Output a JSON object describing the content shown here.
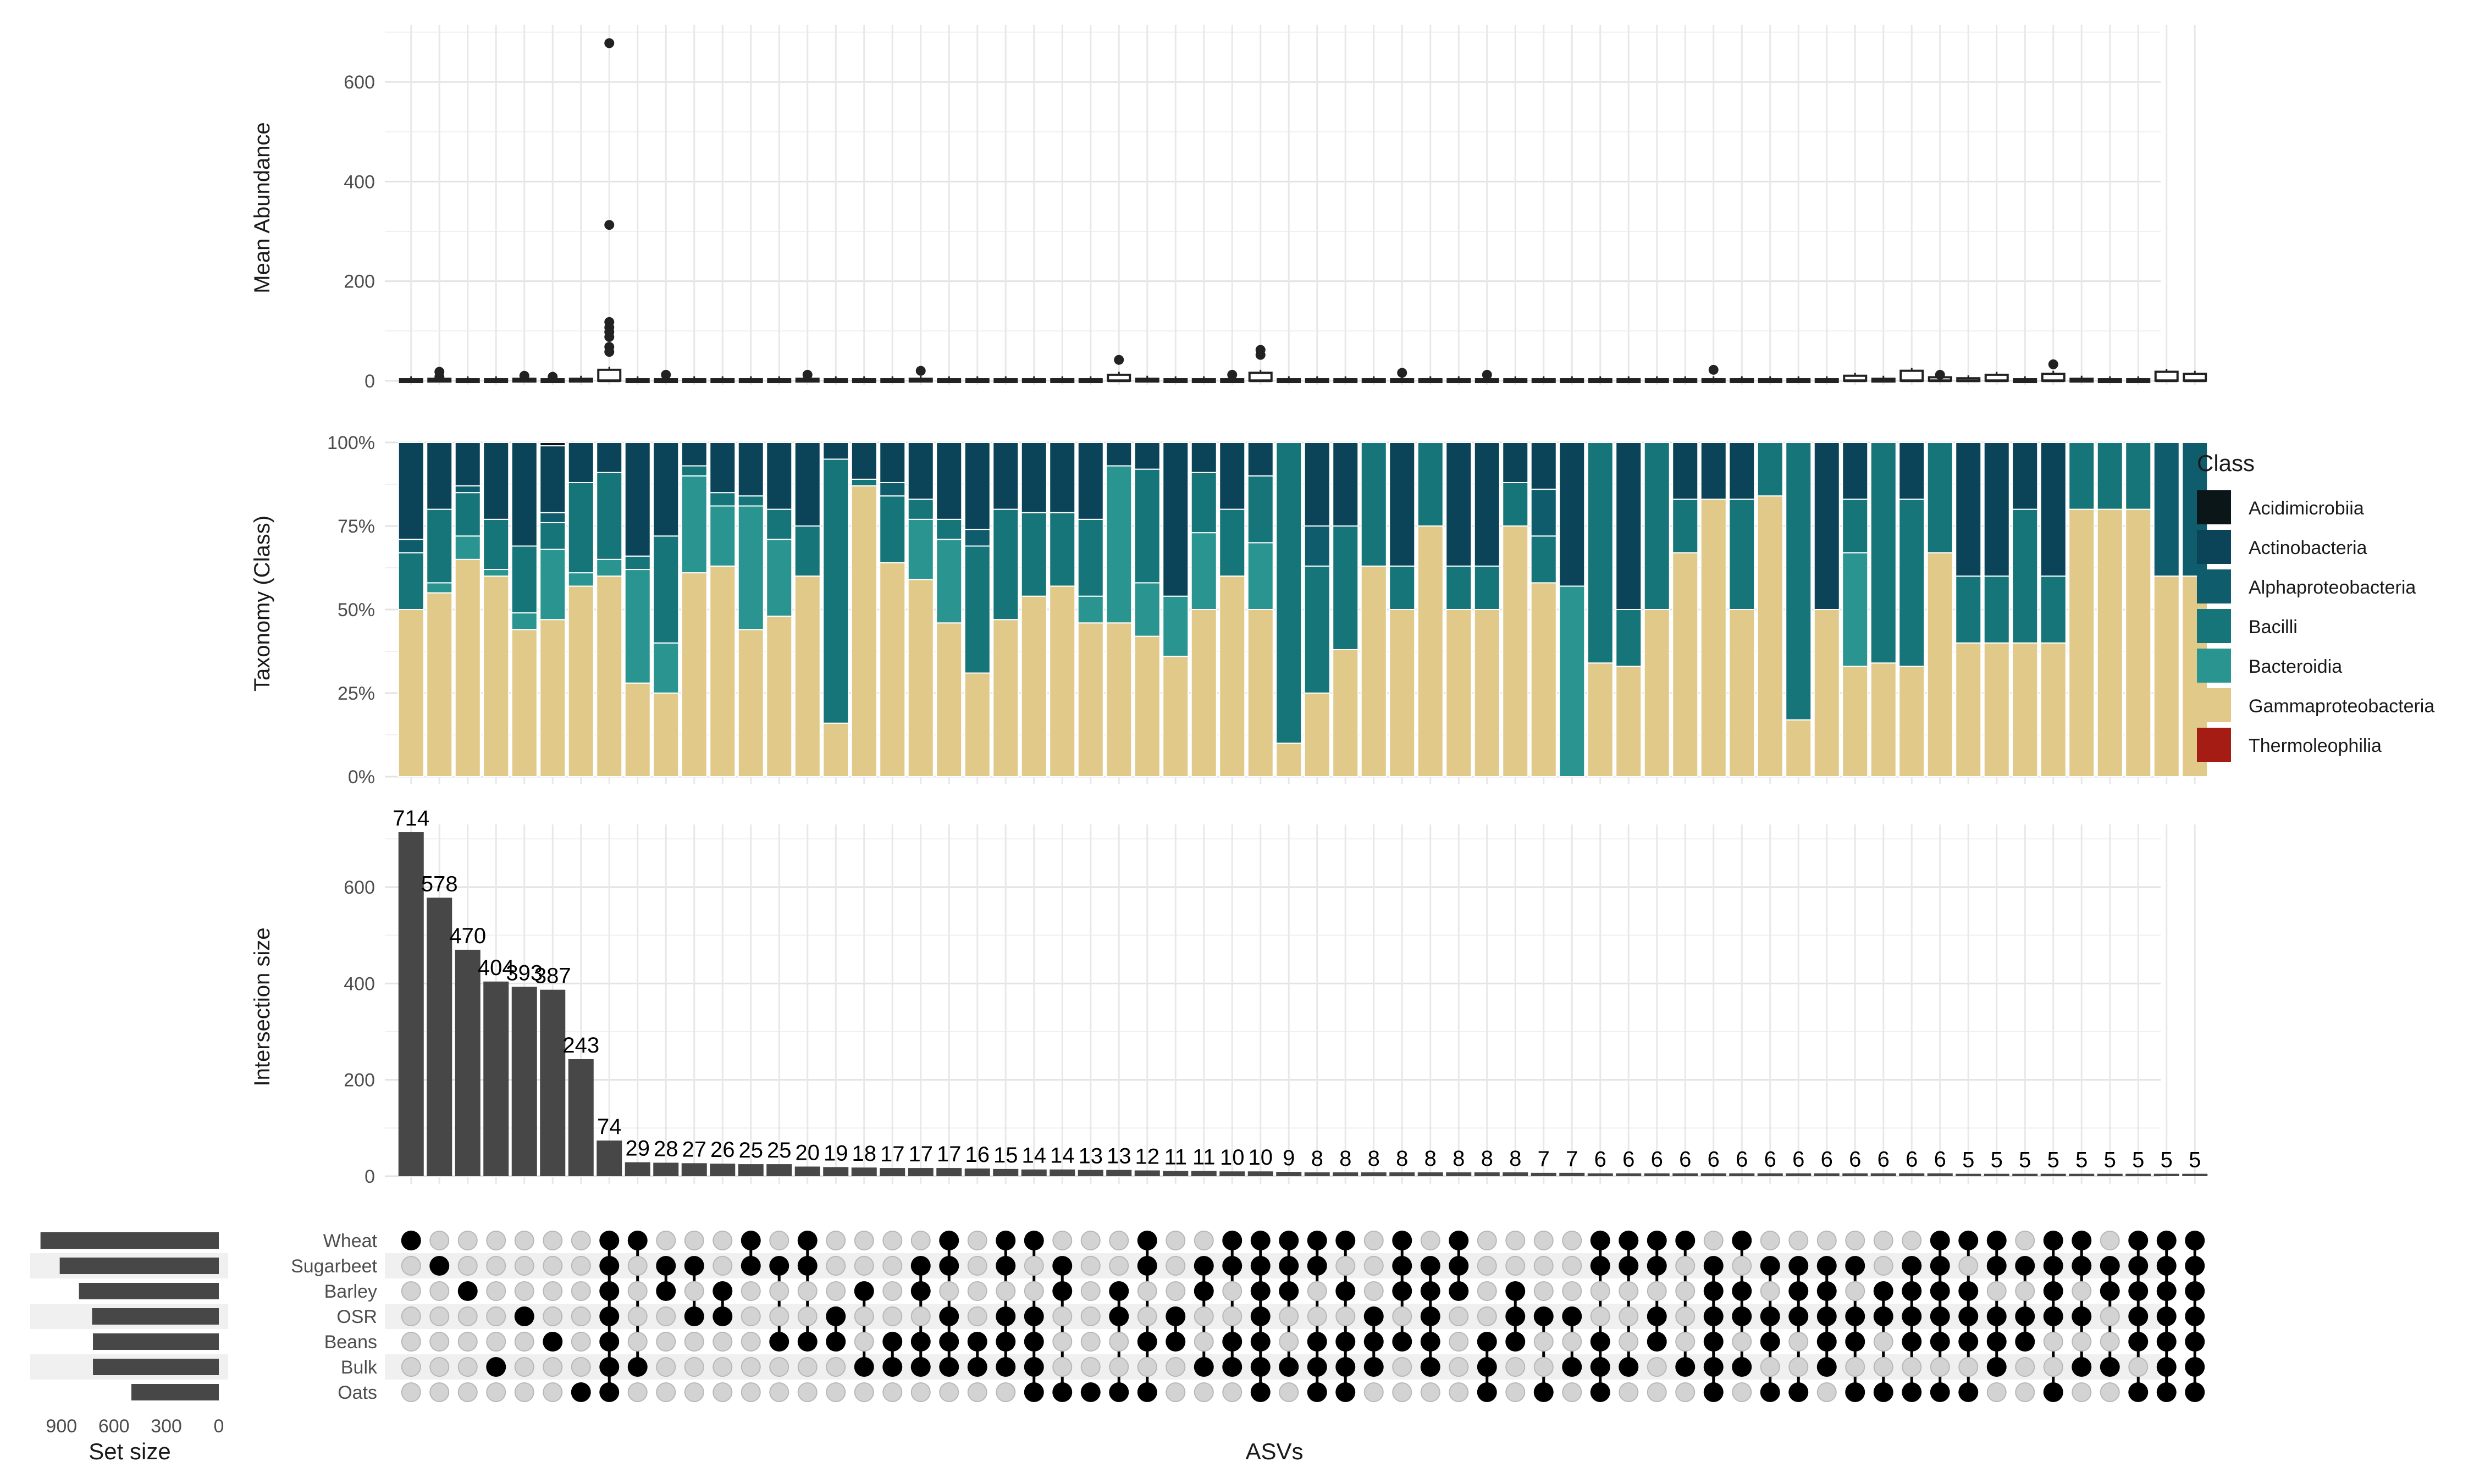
{
  "chart_data": {
    "type": "upset",
    "columns_label": "ASVs",
    "sets": {
      "names": [
        "Wheat",
        "Sugarbeet",
        "Barley",
        "OSR",
        "Beans",
        "Bulk",
        "Oats"
      ],
      "sizes": [
        1020,
        910,
        800,
        725,
        720,
        720,
        500
      ],
      "xlabel": "Set size",
      "ticks": [
        900,
        600,
        300,
        0
      ]
    },
    "intersections": {
      "ylabel": "Intersection size",
      "yticks": [
        0,
        200,
        400,
        600
      ],
      "ylim": [
        0,
        730
      ],
      "values": [
        714,
        578,
        470,
        404,
        393,
        387,
        243,
        74,
        29,
        28,
        27,
        26,
        25,
        25,
        20,
        19,
        18,
        17,
        17,
        17,
        16,
        15,
        14,
        14,
        13,
        13,
        12,
        11,
        11,
        10,
        10,
        9,
        8,
        8,
        8,
        8,
        8,
        8,
        8,
        8,
        7,
        7,
        6,
        6,
        6,
        6,
        6,
        6,
        6,
        6,
        6,
        6,
        6,
        6,
        6,
        5,
        5,
        5,
        5,
        5,
        5,
        5,
        5,
        5
      ],
      "labels": [
        "714",
        "578",
        "470",
        "404",
        "393",
        "387",
        "243",
        "74",
        "29",
        "28",
        "27",
        "26",
        "25",
        "25",
        "20",
        "19",
        "18",
        "17",
        "17",
        "17",
        "16",
        "15",
        "14",
        "14",
        "13",
        "13",
        "12",
        "11",
        "11",
        "10",
        "10",
        "9",
        "8",
        "8",
        "8",
        "8",
        "8",
        "8",
        "8",
        "8",
        "7",
        "7",
        "6",
        "6",
        "6",
        "6",
        "6",
        "6",
        "6",
        "6",
        "6",
        "6",
        "6",
        "6",
        "6",
        "5",
        "5",
        "5",
        "5",
        "5",
        "5",
        "5",
        "5",
        "5"
      ]
    },
    "matrix": [
      [
        0
      ],
      [
        1
      ],
      [
        2
      ],
      [
        5
      ],
      [
        3
      ],
      [
        4
      ],
      [
        6
      ],
      [
        0,
        1,
        2,
        3,
        4,
        5,
        6
      ],
      [
        0,
        5
      ],
      [
        1,
        2
      ],
      [
        1,
        3
      ],
      [
        2,
        3
      ],
      [
        0,
        1
      ],
      [
        1,
        4
      ],
      [
        0,
        1,
        4
      ],
      [
        3,
        4
      ],
      [
        2,
        5
      ],
      [
        4,
        5
      ],
      [
        1,
        2,
        4,
        5
      ],
      [
        0,
        1,
        3,
        4,
        5
      ],
      [
        4,
        5
      ],
      [
        0,
        1,
        3,
        4,
        5
      ],
      [
        0,
        3,
        4,
        5,
        6
      ],
      [
        1,
        2,
        6
      ],
      [
        6
      ],
      [
        2,
        3,
        6
      ],
      [
        0,
        1,
        4,
        6
      ],
      [
        3,
        4
      ],
      [
        1,
        2,
        5
      ],
      [
        0,
        1,
        4,
        5
      ],
      [
        0,
        1,
        2,
        3,
        4,
        5,
        6
      ],
      [
        0,
        1,
        2,
        5
      ],
      [
        0,
        1,
        4,
        5,
        6
      ],
      [
        0,
        2,
        4,
        5,
        6
      ],
      [
        3,
        4,
        5
      ],
      [
        0,
        1,
        2,
        4
      ],
      [
        1,
        2,
        3,
        4,
        5
      ],
      [
        0,
        1,
        2
      ],
      [
        4,
        5,
        6
      ],
      [
        2,
        3,
        4
      ],
      [
        3,
        6
      ],
      [
        3,
        5
      ],
      [
        0,
        1,
        4,
        5,
        6
      ],
      [
        0,
        1,
        5
      ],
      [
        0,
        1,
        3,
        4
      ],
      [
        0,
        5
      ],
      [
        1,
        2,
        3,
        4,
        5,
        6
      ],
      [
        0,
        2,
        3,
        5
      ],
      [
        1,
        3,
        4,
        6
      ],
      [
        1,
        2,
        3,
        6
      ],
      [
        1,
        2,
        3,
        4,
        5
      ],
      [
        1,
        3,
        4,
        6
      ],
      [
        2,
        3,
        6
      ],
      [
        1,
        2,
        3,
        4,
        6
      ],
      [
        0,
        1,
        2,
        3,
        4,
        6
      ],
      [
        0,
        2,
        3,
        4,
        6
      ],
      [
        0,
        1,
        3,
        4,
        5
      ],
      [
        1,
        3,
        4
      ],
      [
        0,
        1,
        2,
        3,
        6
      ],
      [
        0,
        1,
        3,
        5
      ],
      [
        1,
        2,
        5
      ],
      [
        0,
        1,
        2,
        3,
        4,
        6
      ],
      [
        0,
        1,
        2,
        3,
        4,
        5,
        6
      ],
      [
        0,
        1,
        2,
        3,
        4,
        5,
        6
      ]
    ],
    "abundance": {
      "ylabel": "Mean Abundance",
      "yticks": [
        0,
        200,
        400,
        600
      ],
      "ylim": [
        -8,
        715
      ],
      "outliers": [
        {
          "col": 1,
          "values": [
            18,
            8
          ]
        },
        {
          "col": 4,
          "values": [
            10
          ]
        },
        {
          "col": 5,
          "values": [
            8
          ]
        },
        {
          "col": 7,
          "values": [
            678,
            313,
            118,
            107,
            98,
            88,
            68,
            58
          ]
        },
        {
          "col": 9,
          "values": [
            12
          ]
        },
        {
          "col": 14,
          "values": [
            12
          ]
        },
        {
          "col": 18,
          "values": [
            20
          ]
        },
        {
          "col": 25,
          "values": [
            42
          ]
        },
        {
          "col": 29,
          "values": [
            12
          ]
        },
        {
          "col": 30,
          "values": [
            62,
            52
          ]
        },
        {
          "col": 35,
          "values": [
            16
          ]
        },
        {
          "col": 38,
          "values": [
            12
          ]
        },
        {
          "col": 46,
          "values": [
            22
          ]
        },
        {
          "col": 54,
          "values": [
            12
          ]
        },
        {
          "col": 58,
          "values": [
            33
          ]
        }
      ],
      "box_heights": [
        3,
        4,
        3,
        3,
        4,
        3,
        4,
        22,
        3,
        3,
        3,
        3,
        3,
        3,
        4,
        3,
        3,
        3,
        4,
        3,
        3,
        3,
        3,
        3,
        3,
        12,
        4,
        3,
        3,
        3,
        16,
        3,
        3,
        3,
        3,
        3,
        3,
        3,
        3,
        3,
        3,
        3,
        3,
        3,
        3,
        3,
        3,
        3,
        3,
        3,
        3,
        10,
        4,
        20,
        7,
        5,
        12,
        3,
        14,
        4,
        3,
        3,
        18,
        14
      ]
    },
    "taxonomy": {
      "ylabel": "Taxonomy (Class)",
      "yticks": [
        "0%",
        "25%",
        "50%",
        "75%",
        "100%"
      ],
      "legend_title": "Class",
      "legend_position": "right",
      "classes": [
        "Acidimicrobiia",
        "Actinobacteria",
        "Alphaproteobacteria",
        "Bacilli",
        "Bacteroidia",
        "Gammaproteobacteria",
        "Thermoleophilia"
      ],
      "colors": [
        "#0a1618",
        "#0b4458",
        "#0f5d6c",
        "#167578",
        "#2a9590",
        "#e1c98a",
        "#a41c14"
      ],
      "note": "fractions per column, stacked bottom-to-top in order: Thermoleophilia, Gammaproteobacteria, Bacteroidia, Bacilli, Alphaproteobacteria, Actinobacteria, Acidimicrobiia",
      "stacks": [
        [
          0,
          0.29,
          0.04,
          0.17,
          0,
          0.5,
          0
        ],
        [
          0,
          0.2,
          0,
          0.22,
          0.03,
          0.55,
          0
        ],
        [
          0,
          0.13,
          0.02,
          0.13,
          0.07,
          0.65,
          0
        ],
        [
          0,
          0.23,
          0,
          0.15,
          0.02,
          0.6,
          0
        ],
        [
          0,
          0.31,
          0,
          0.2,
          0.05,
          0.44,
          0
        ],
        [
          0.01,
          0.2,
          0.03,
          0.08,
          0.21,
          0.47,
          0
        ],
        [
          0,
          0.12,
          0,
          0.27,
          0.04,
          0.57,
          0
        ],
        [
          0,
          0.09,
          0,
          0.26,
          0.05,
          0.6,
          0
        ],
        [
          0,
          0.34,
          0,
          0.04,
          0.34,
          0.28,
          0
        ],
        [
          0,
          0.28,
          0,
          0.32,
          0.15,
          0.25,
          0
        ],
        [
          0,
          0.07,
          0,
          0.03,
          0.29,
          0.61,
          0
        ],
        [
          0,
          0.15,
          0,
          0.04,
          0.18,
          0.63,
          0
        ],
        [
          0,
          0.16,
          0,
          0.03,
          0.37,
          0.44,
          0
        ],
        [
          0,
          0.2,
          0,
          0.09,
          0.23,
          0.48,
          0
        ],
        [
          0,
          0.25,
          0,
          0.15,
          0,
          0.6,
          0
        ],
        [
          0,
          0.05,
          0,
          0.79,
          0,
          0.16,
          0
        ],
        [
          0,
          0.11,
          0,
          0.02,
          0,
          0.87,
          0
        ],
        [
          0,
          0.12,
          0.04,
          0.2,
          0,
          0.64,
          0
        ],
        [
          0,
          0.17,
          0,
          0.06,
          0.18,
          0.59,
          0
        ],
        [
          0,
          0.23,
          0,
          0.06,
          0.25,
          0.46,
          0
        ],
        [
          0,
          0.26,
          0.05,
          0.38,
          0,
          0.31,
          0
        ],
        [
          0,
          0.2,
          0,
          0.33,
          0,
          0.47,
          0
        ],
        [
          0,
          0.21,
          0,
          0.25,
          0,
          0.54,
          0
        ],
        [
          0,
          0.21,
          0,
          0.22,
          0,
          0.57,
          0
        ],
        [
          0,
          0.23,
          0,
          0.23,
          0.08,
          0.46,
          0
        ],
        [
          0,
          0.07,
          0,
          0,
          0.47,
          0.46,
          0
        ],
        [
          0,
          0.08,
          0,
          0.34,
          0.16,
          0.42,
          0
        ],
        [
          0,
          0.46,
          0,
          0,
          0.18,
          0.36,
          0
        ],
        [
          0,
          0.09,
          0,
          0.18,
          0.23,
          0.5,
          0
        ],
        [
          0,
          0.2,
          0,
          0.2,
          0,
          0.6,
          0
        ],
        [
          0,
          0.1,
          0,
          0.2,
          0.2,
          0.5,
          0
        ],
        [
          0,
          0,
          0,
          0.9,
          0,
          0.1,
          0
        ],
        [
          0,
          0.25,
          0.12,
          0.38,
          0,
          0.25,
          0
        ],
        [
          0,
          0.25,
          0,
          0.37,
          0,
          0.38,
          0
        ],
        [
          0,
          0,
          0,
          0.37,
          0,
          0.63,
          0
        ],
        [
          0,
          0.37,
          0,
          0.13,
          0,
          0.5,
          0
        ],
        [
          0,
          0,
          0,
          0.25,
          0,
          0.75,
          0
        ],
        [
          0,
          0.37,
          0,
          0.13,
          0,
          0.5,
          0
        ],
        [
          0,
          0.37,
          0,
          0.13,
          0,
          0.5,
          0
        ],
        [
          0,
          0.12,
          0,
          0.13,
          0,
          0.75,
          0
        ],
        [
          0,
          0.14,
          0.14,
          0.14,
          0,
          0.58,
          0
        ],
        [
          0,
          0.43,
          0,
          0,
          0.57,
          0,
          0
        ],
        [
          0,
          0,
          0,
          0.66,
          0,
          0.34,
          0
        ],
        [
          0,
          0.5,
          0,
          0.17,
          0,
          0.33,
          0
        ],
        [
          0,
          0,
          0,
          0.5,
          0,
          0.5,
          0
        ],
        [
          0,
          0.17,
          0,
          0.16,
          0,
          0.67,
          0
        ],
        [
          0,
          0.17,
          0,
          0,
          0,
          0.83,
          0
        ],
        [
          0,
          0.17,
          0,
          0.33,
          0,
          0.5,
          0
        ],
        [
          0,
          0,
          0,
          0.16,
          0,
          0.84,
          0
        ],
        [
          0,
          0,
          0,
          0.83,
          0,
          0.17,
          0
        ],
        [
          0,
          0.5,
          0,
          0,
          0,
          0.5,
          0
        ],
        [
          0,
          0.17,
          0,
          0.16,
          0.34,
          0.33,
          0
        ],
        [
          0,
          0,
          0,
          0.66,
          0,
          0.34,
          0
        ],
        [
          0,
          0.17,
          0,
          0.5,
          0,
          0.33,
          0
        ],
        [
          0,
          0,
          0,
          0.33,
          0,
          0.67,
          0
        ],
        [
          0,
          0.4,
          0,
          0.2,
          0,
          0.4,
          0
        ],
        [
          0,
          0.4,
          0,
          0.2,
          0,
          0.4,
          0
        ],
        [
          0,
          0.2,
          0,
          0.4,
          0,
          0.4,
          0
        ],
        [
          0,
          0.4,
          0,
          0.2,
          0,
          0.4,
          0
        ],
        [
          0,
          0,
          0,
          0.2,
          0,
          0.8,
          0
        ],
        [
          0,
          0,
          0,
          0.2,
          0,
          0.8,
          0
        ],
        [
          0,
          0,
          0,
          0.2,
          0,
          0.8,
          0
        ],
        [
          0,
          0,
          0.4,
          0,
          0,
          0.6,
          0
        ],
        [
          0,
          0,
          0.4,
          0,
          0,
          0.6,
          0
        ]
      ]
    }
  }
}
